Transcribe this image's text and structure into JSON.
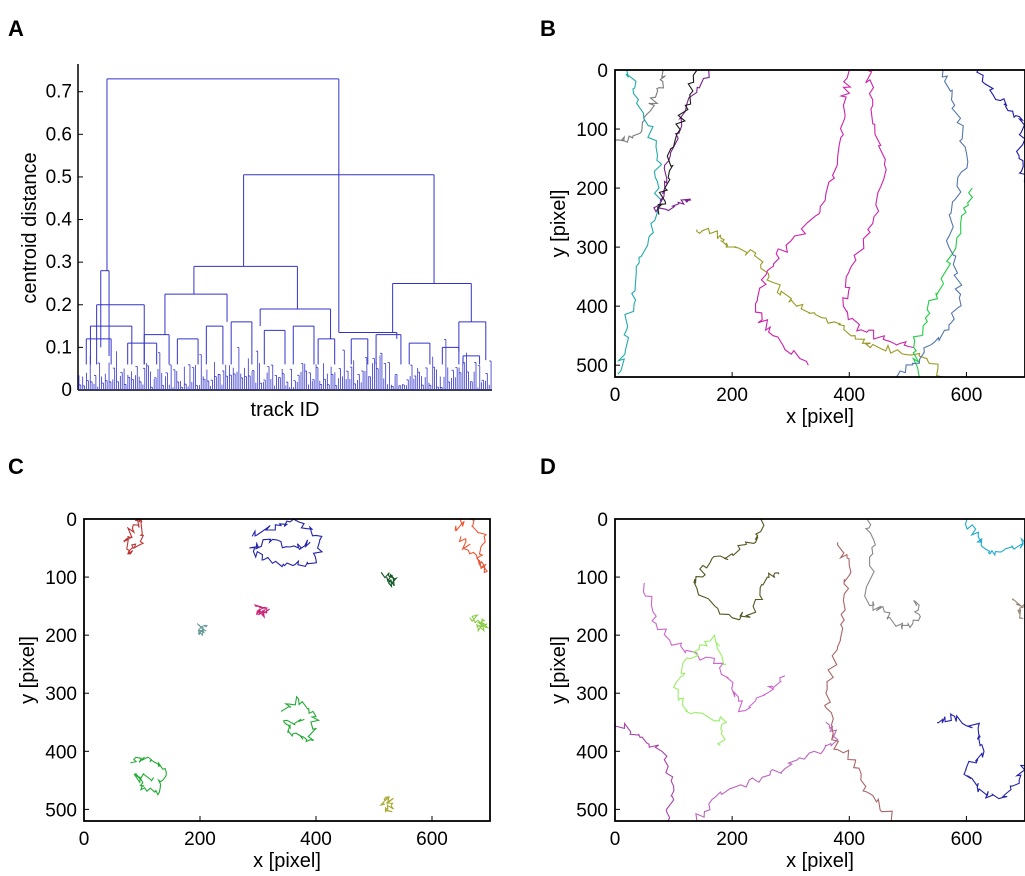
{
  "panels": [
    {
      "letter": "A"
    },
    {
      "letter": "B"
    },
    {
      "letter": "C"
    },
    {
      "letter": "D"
    }
  ],
  "chart_data": [
    {
      "panel": "A",
      "type": "dendrogram",
      "xlabel": "track ID",
      "ylabel": "centroid distance",
      "ylim": [
        0,
        0.75
      ],
      "yticks": [
        0,
        0.1,
        0.2,
        0.3,
        0.4,
        0.5,
        0.6,
        0.7
      ],
      "line_color": "#3333cc",
      "merges": [
        {
          "height": 0.73,
          "left_x": 0.07,
          "right_x": 0.63
        },
        {
          "height": 0.505,
          "left_x": 0.4,
          "right_x": 0.86
        },
        {
          "height": 0.29,
          "left_x": 0.28,
          "right_x": 0.53
        },
        {
          "height": 0.25,
          "left_x": 0.76,
          "right_x": 0.95
        },
        {
          "height": 0.28,
          "left_x": 0.055,
          "right_x": 0.075
        },
        {
          "height": 0.225,
          "left_x": 0.21,
          "right_x": 0.36
        },
        {
          "height": 0.19,
          "left_x": 0.44,
          "right_x": 0.61
        },
        {
          "height": 0.16,
          "left_x": 0.92,
          "right_x": 0.985
        },
        {
          "height": 0.135,
          "left_x": 0.63,
          "right_x": 0.77
        }
      ]
    },
    {
      "panel": "B",
      "type": "trajectory",
      "xlabel": "x [pixel]",
      "ylabel": "y [pixel]",
      "xlim": [
        0,
        700
      ],
      "ylim": [
        0,
        520
      ],
      "y_inverted": true,
      "xticks": [
        0,
        200,
        400,
        600
      ],
      "yticks": [
        0,
        100,
        200,
        300,
        400,
        500
      ],
      "tracks": [
        {
          "color": "#7a7a7a",
          "points": [
            [
              0,
              125
            ],
            [
              30,
              115
            ],
            [
              60,
              70
            ],
            [
              75,
              30
            ],
            [
              90,
              0
            ]
          ]
        },
        {
          "color": "#22aaaa",
          "points": [
            [
              20,
              0
            ],
            [
              40,
              50
            ],
            [
              70,
              130
            ],
            [
              75,
              200
            ],
            [
              60,
              280
            ],
            [
              35,
              360
            ],
            [
              20,
              440
            ],
            [
              5,
              515
            ]
          ]
        },
        {
          "color": "#7a1f8c",
          "points": [
            [
              160,
              0
            ],
            [
              120,
              70
            ],
            [
              95,
              140
            ],
            [
              85,
              200
            ],
            [
              70,
              240
            ],
            [
              110,
              225
            ],
            [
              130,
              220
            ]
          ]
        },
        {
          "color": "#1a1a1a",
          "points": [
            [
              140,
              0
            ],
            [
              120,
              60
            ],
            [
              100,
              130
            ],
            [
              85,
              200
            ],
            [
              75,
              245
            ]
          ]
        },
        {
          "color": "#999922",
          "points": [
            [
              140,
              270
            ],
            [
              180,
              280
            ],
            [
              190,
              300
            ],
            [
              240,
              310
            ],
            [
              270,
              360
            ],
            [
              310,
              400
            ],
            [
              360,
              420
            ],
            [
              410,
              450
            ],
            [
              450,
              470
            ],
            [
              520,
              480
            ],
            [
              560,
              520
            ]
          ]
        },
        {
          "color": "#cc22aa",
          "points": [
            [
              400,
              0
            ],
            [
              390,
              60
            ],
            [
              380,
              150
            ],
            [
              350,
              240
            ],
            [
              300,
              290
            ],
            [
              260,
              340
            ],
            [
              240,
              410
            ],
            [
              270,
              450
            ],
            [
              330,
              500
            ]
          ]
        },
        {
          "color": "#cc22aa",
          "points": [
            [
              430,
              0
            ],
            [
              440,
              60
            ],
            [
              460,
              160
            ],
            [
              440,
              260
            ],
            [
              400,
              340
            ],
            [
              390,
              400
            ],
            [
              420,
              440
            ],
            [
              470,
              460
            ],
            [
              510,
              470
            ]
          ]
        },
        {
          "color": "#22cc44",
          "points": [
            [
              610,
              200
            ],
            [
              590,
              260
            ],
            [
              560,
              360
            ],
            [
              530,
              420
            ],
            [
              510,
              470
            ],
            [
              520,
              520
            ]
          ]
        },
        {
          "color": "#5577aa",
          "points": [
            [
              560,
              0
            ],
            [
              580,
              60
            ],
            [
              600,
              140
            ],
            [
              580,
              220
            ],
            [
              570,
              300
            ],
            [
              590,
              380
            ],
            [
              570,
              440
            ],
            [
              520,
              490
            ],
            [
              480,
              520
            ]
          ]
        },
        {
          "color": "#1a1aaa",
          "points": [
            [
              620,
              0
            ],
            [
              650,
              50
            ],
            [
              680,
              70
            ],
            [
              700,
              90
            ],
            [
              690,
              150
            ],
            [
              700,
              200
            ]
          ]
        }
      ]
    },
    {
      "panel": "C",
      "type": "trajectory",
      "xlabel": "x [pixel]",
      "ylabel": "y [pixel]",
      "xlim": [
        0,
        700
      ],
      "ylim": [
        0,
        520
      ],
      "y_inverted": true,
      "xticks": [
        0,
        200,
        400,
        600
      ],
      "yticks": [
        0,
        100,
        200,
        300,
        400,
        500
      ],
      "tracks": [
        {
          "color": "#bb3333",
          "points": [
            [
              70,
              40
            ],
            [
              85,
              10
            ],
            [
              100,
              5
            ],
            [
              95,
              45
            ],
            [
              80,
              60
            ],
            [
              75,
              30
            ]
          ]
        },
        {
          "color": "#2222aa",
          "points": [
            [
              290,
              30
            ],
            [
              330,
              10
            ],
            [
              370,
              5
            ],
            [
              410,
              30
            ],
            [
              400,
              70
            ],
            [
              360,
              80
            ],
            [
              310,
              70
            ],
            [
              285,
              50
            ],
            [
              320,
              40
            ],
            [
              370,
              50
            ],
            [
              390,
              40
            ]
          ]
        },
        {
          "color": "#ee5533",
          "points": [
            [
              640,
              20
            ],
            [
              660,
              0
            ],
            [
              690,
              30
            ],
            [
              680,
              70
            ],
            [
              695,
              90
            ],
            [
              665,
              60
            ],
            [
              650,
              30
            ]
          ]
        },
        {
          "color": "#115522",
          "points": [
            [
              515,
              95
            ],
            [
              530,
              100
            ],
            [
              525,
              110
            ],
            [
              535,
              105
            ]
          ]
        },
        {
          "color": "#cc2277",
          "points": [
            [
              295,
              150
            ],
            [
              310,
              160
            ],
            [
              300,
              165
            ],
            [
              320,
              155
            ]
          ]
        },
        {
          "color": "#669999",
          "points": [
            [
              195,
              180
            ],
            [
              205,
              190
            ],
            [
              200,
              195
            ],
            [
              208,
              185
            ]
          ]
        },
        {
          "color": "#88cc44",
          "points": [
            [
              665,
              170
            ],
            [
              690,
              175
            ],
            [
              680,
              190
            ],
            [
              695,
              180
            ]
          ]
        },
        {
          "color": "#22aa33",
          "points": [
            [
              340,
              330
            ],
            [
              370,
              310
            ],
            [
              400,
              340
            ],
            [
              390,
              380
            ],
            [
              360,
              370
            ],
            [
              345,
              350
            ],
            [
              380,
              345
            ]
          ]
        },
        {
          "color": "#22aa33",
          "points": [
            [
              80,
              420
            ],
            [
              110,
              410
            ],
            [
              140,
              430
            ],
            [
              130,
              470
            ],
            [
              100,
              460
            ],
            [
              90,
              440
            ],
            [
              120,
              445
            ]
          ]
        },
        {
          "color": "#aaaa33",
          "points": [
            [
              515,
              490
            ],
            [
              525,
              480
            ],
            [
              530,
              495
            ],
            [
              520,
              505
            ]
          ]
        }
      ]
    },
    {
      "panel": "D",
      "type": "trajectory",
      "xlabel": "x [pixel]",
      "ylabel": "y [pixel]",
      "xlim": [
        0,
        700
      ],
      "ylim": [
        0,
        520
      ],
      "y_inverted": true,
      "xticks": [
        0,
        200,
        400,
        600
      ],
      "yticks": [
        0,
        100,
        200,
        300,
        400,
        500
      ],
      "tracks": [
        {
          "color": "#555522",
          "points": [
            [
              250,
              0
            ],
            [
              240,
              40
            ],
            [
              200,
              60
            ],
            [
              150,
              80
            ],
            [
              140,
              120
            ],
            [
              200,
              170
            ],
            [
              240,
              160
            ],
            [
              260,
              100
            ],
            [
              280,
              95
            ]
          ]
        },
        {
          "color": "#cc66cc",
          "points": [
            [
              50,
              110
            ],
            [
              70,
              180
            ],
            [
              120,
              230
            ],
            [
              170,
              240
            ],
            [
              200,
              290
            ],
            [
              220,
              330
            ],
            [
              260,
              300
            ],
            [
              290,
              270
            ]
          ]
        },
        {
          "color": "#99ee66",
          "points": [
            [
              190,
              250
            ],
            [
              170,
              200
            ],
            [
              130,
              240
            ],
            [
              100,
              290
            ],
            [
              120,
              330
            ],
            [
              190,
              350
            ],
            [
              180,
              390
            ]
          ]
        },
        {
          "color": "#aa44aa",
          "points": [
            [
              0,
              350
            ],
            [
              40,
              370
            ],
            [
              80,
              400
            ],
            [
              100,
              460
            ],
            [
              90,
              520
            ]
          ]
        },
        {
          "color": "#bb66bb",
          "points": [
            [
              140,
              520
            ],
            [
              180,
              470
            ],
            [
              240,
              450
            ],
            [
              290,
              430
            ],
            [
              340,
              400
            ],
            [
              380,
              380
            ],
            [
              360,
              350
            ]
          ]
        },
        {
          "color": "#aa6666",
          "points": [
            [
              380,
              40
            ],
            [
              400,
              80
            ],
            [
              390,
              140
            ],
            [
              380,
              220
            ],
            [
              360,
              300
            ],
            [
              370,
              380
            ],
            [
              410,
              420
            ],
            [
              430,
              470
            ],
            [
              480,
              520
            ]
          ]
        },
        {
          "color": "#888888",
          "points": [
            [
              430,
              0
            ],
            [
              440,
              60
            ],
            [
              430,
              140
            ],
            [
              460,
              160
            ],
            [
              490,
              190
            ],
            [
              520,
              170
            ],
            [
              510,
              140
            ]
          ]
        },
        {
          "color": "#2222aa",
          "points": [
            [
              550,
              350
            ],
            [
              580,
              340
            ],
            [
              620,
              360
            ],
            [
              630,
              400
            ],
            [
              600,
              430
            ],
            [
              620,
              470
            ],
            [
              660,
              480
            ],
            [
              690,
              450
            ],
            [
              700,
              420
            ]
          ]
        },
        {
          "color": "#22aacc",
          "points": [
            [
              600,
              0
            ],
            [
              620,
              30
            ],
            [
              640,
              60
            ],
            [
              680,
              50
            ],
            [
              700,
              40
            ]
          ]
        },
        {
          "color": "#998877",
          "points": [
            [
              680,
              140
            ],
            [
              700,
              150
            ],
            [
              690,
              170
            ]
          ]
        }
      ]
    }
  ]
}
